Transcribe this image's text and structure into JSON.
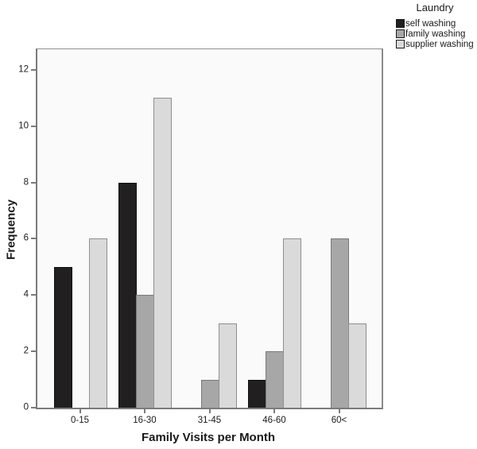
{
  "chart_data": {
    "type": "bar",
    "categories": [
      "0-15",
      "16-30",
      "31-45",
      "46-60",
      "60<"
    ],
    "series": [
      {
        "name": "self washing",
        "color": "#221f20",
        "border_color": "#111111",
        "values": [
          5,
          8,
          0,
          1,
          0
        ]
      },
      {
        "name": "family washing",
        "color": "#a7a7a7",
        "border_color": "#7a7a7a",
        "values": [
          0,
          4,
          1,
          2,
          6
        ]
      },
      {
        "name": "supplier washing",
        "color": "#dadada",
        "border_color": "#8f8f8f",
        "values": [
          6,
          11,
          3,
          6,
          3
        ]
      }
    ],
    "xlabel": "Family Visits per Month",
    "ylabel": "Frequency",
    "ylim": [
      0,
      12.73
    ],
    "yticks": [
      0,
      2,
      4,
      6,
      8,
      10,
      12
    ],
    "legend_title": "Laundry",
    "legend_position": "top-right",
    "grid": false,
    "zero_values_hidden": true,
    "plot_background": "#fafafa",
    "axis_color": "#7b7b7b",
    "text_color": "#1a1a1a"
  }
}
